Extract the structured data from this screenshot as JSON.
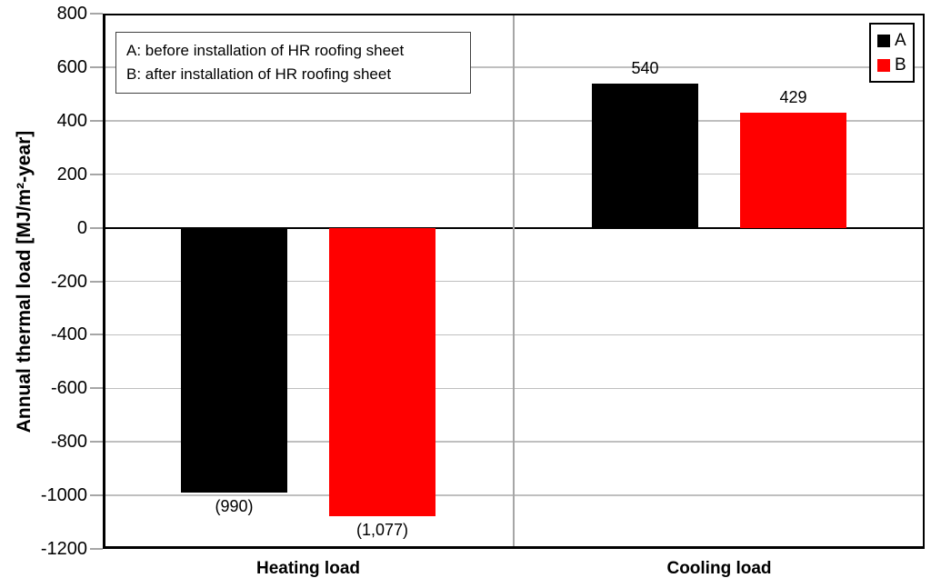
{
  "chart_data": {
    "type": "bar",
    "title": "",
    "categories": [
      "Heating load",
      "Cooling load"
    ],
    "series": [
      {
        "name": "A",
        "color": "#000000",
        "values": [
          -990,
          540
        ],
        "value_labels": [
          "(990)",
          "540"
        ]
      },
      {
        "name": "B",
        "color": "#ff0000",
        "values": [
          -1077,
          429
        ],
        "value_labels": [
          "(1,077)",
          "429"
        ]
      }
    ],
    "xlabel": "",
    "ylabel": "Annual thermal load [MJ/m²-year]",
    "ylim": [
      -1200,
      800
    ],
    "ytick_step": 200,
    "yticks": [
      800,
      600,
      400,
      200,
      0,
      -200,
      -400,
      -600,
      -800,
      -1000,
      -1200
    ],
    "ytick_labels": [
      "800",
      "600",
      "400",
      "200",
      "0",
      "-200",
      "-400",
      "-600",
      "-800",
      "-1000",
      "-1200"
    ],
    "grid": true,
    "legend_position": "top-right-inside",
    "legend_items": [
      {
        "label": "A",
        "color": "#000000"
      },
      {
        "label": "B",
        "color": "#ff0000"
      }
    ],
    "annotation_lines": [
      "A: before installation of HR roofing sheet",
      "B: after installation of HR roofing sheet"
    ],
    "colors": {
      "series_a": "#000000",
      "series_b": "#ff0000",
      "gridline": "#bfbfbf",
      "separator": "#a6a6a6",
      "axis": "#000000"
    }
  }
}
